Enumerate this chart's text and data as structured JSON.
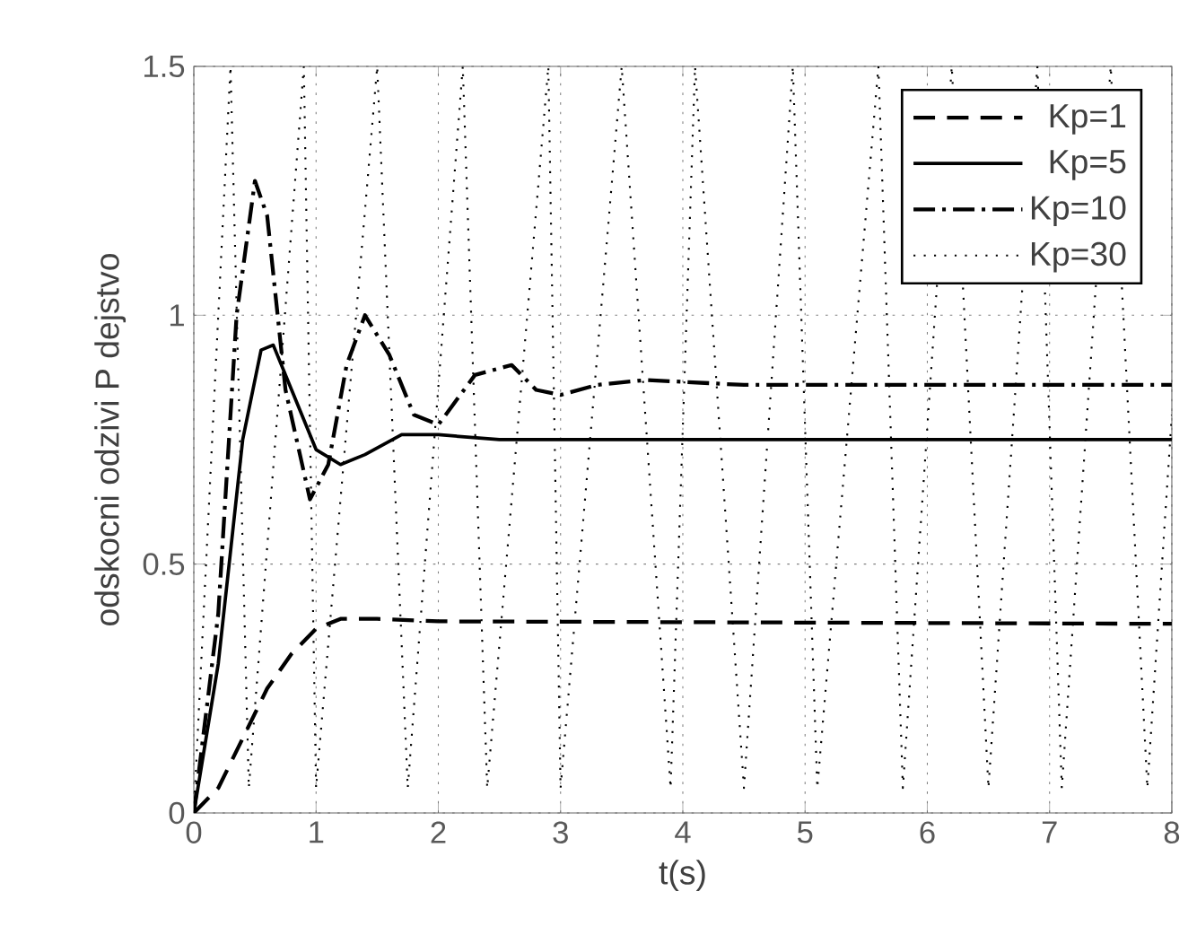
{
  "chart_data": {
    "type": "line",
    "xlabel": "t(s)",
    "ylabel": "odskocni odzivi P dejstvo",
    "xlim": [
      0,
      8
    ],
    "ylim": [
      0,
      1.5
    ],
    "xticks": [
      0,
      1,
      2,
      3,
      4,
      5,
      6,
      7,
      8
    ],
    "yticks": [
      0,
      0.5,
      1,
      1.5
    ],
    "grid": true,
    "legend": "top right",
    "series": [
      {
        "name": "Kp=1",
        "color": "#000000",
        "line_style": "dashed",
        "x": [
          0,
          0.2,
          0.4,
          0.6,
          0.8,
          1.0,
          1.2,
          1.5,
          2,
          8
        ],
        "values": [
          0,
          0.05,
          0.15,
          0.25,
          0.32,
          0.37,
          0.39,
          0.39,
          0.385,
          0.38
        ]
      },
      {
        "name": "Kp=5",
        "color": "#000000",
        "line_style": "solid",
        "x": [
          0,
          0.2,
          0.4,
          0.55,
          0.65,
          0.8,
          1.0,
          1.2,
          1.4,
          1.7,
          2,
          2.5,
          8
        ],
        "values": [
          0,
          0.3,
          0.75,
          0.93,
          0.94,
          0.85,
          0.73,
          0.7,
          0.72,
          0.76,
          0.76,
          0.75,
          0.75
        ]
      },
      {
        "name": "Kp=10",
        "color": "#000000",
        "line_style": "dashdot",
        "x": [
          0,
          0.2,
          0.35,
          0.5,
          0.6,
          0.75,
          0.95,
          1.1,
          1.25,
          1.4,
          1.6,
          1.8,
          2.0,
          2.3,
          2.6,
          2.8,
          3.0,
          3.3,
          3.7,
          4.5,
          8
        ],
        "values": [
          0,
          0.4,
          1.0,
          1.27,
          1.2,
          0.85,
          0.63,
          0.7,
          0.9,
          1.0,
          0.92,
          0.8,
          0.78,
          0.88,
          0.9,
          0.85,
          0.84,
          0.86,
          0.87,
          0.86,
          0.86
        ]
      },
      {
        "name": "Kp=30",
        "color": "#000000",
        "line_style": "dotted",
        "x": [
          0,
          0.3,
          0.45,
          0.9,
          1.0,
          1.5,
          1.75,
          2.2,
          2.4,
          2.9,
          3.0,
          3.5,
          3.9,
          4.1,
          4.5,
          4.9,
          5.1,
          5.6,
          5.8,
          6.2,
          6.5,
          6.9,
          7.1,
          7.5,
          7.8,
          8
        ],
        "values": [
          0,
          1.5,
          0.05,
          1.5,
          0.05,
          1.5,
          0.05,
          1.5,
          0.05,
          1.5,
          0.05,
          1.5,
          0.05,
          1.5,
          0.05,
          1.5,
          0.05,
          1.5,
          0.05,
          1.5,
          0.05,
          1.5,
          0.05,
          1.5,
          0.05,
          0.8
        ]
      }
    ]
  }
}
